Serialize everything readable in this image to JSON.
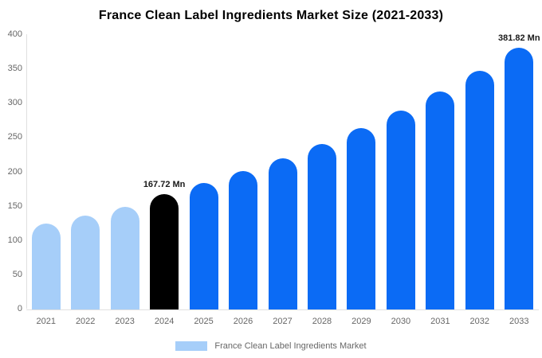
{
  "chart_data": {
    "type": "bar",
    "title": "France Clean Label Ingredients Market Size (2021-2033)",
    "categories": [
      "2021",
      "2022",
      "2023",
      "2024",
      "2025",
      "2026",
      "2027",
      "2028",
      "2029",
      "2030",
      "2031",
      "2032",
      "2033"
    ],
    "values": [
      125,
      137,
      150,
      167.72,
      183.77,
      201.35,
      220.61,
      241.72,
      264.85,
      290.19,
      317.95,
      348.37,
      381.82
    ],
    "unit": "Mn",
    "xlabel": "",
    "ylabel": "",
    "ylim": [
      0,
      400
    ],
    "yticks": [
      0,
      50,
      100,
      150,
      200,
      250,
      300,
      350,
      400
    ],
    "grid": false,
    "bar_colors": [
      "#A6CEF9",
      "#A6CEF9",
      "#A6CEF9",
      "#000000",
      "#0B6BF5",
      "#0B6BF5",
      "#0B6BF5",
      "#0B6BF5",
      "#0B6BF5",
      "#0B6BF5",
      "#0B6BF5",
      "#0B6BF5",
      "#0B6BF5"
    ],
    "annotations": [
      {
        "category": "2024",
        "text": "167.72 Mn"
      },
      {
        "category": "2033",
        "text": "381.82 Mn"
      }
    ],
    "legend": {
      "label": "France Clean Label Ingredients Market",
      "swatch_color": "#A6CEF9",
      "position": "bottom"
    },
    "axis_color": "#e0e0e0",
    "tick_label_color": "#666666"
  }
}
